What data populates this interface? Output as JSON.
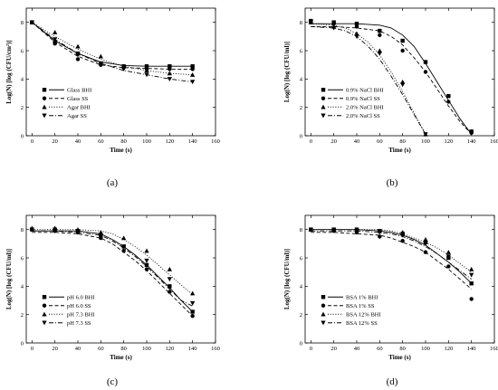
{
  "chart_data": [
    {
      "type": "scatter",
      "panel_label": "(a)",
      "xlabel": "Time (s)",
      "ylabel": "Log(N) [log (CFU/cm²)]",
      "xlim": [
        -5,
        160
      ],
      "ylim": [
        0,
        9
      ],
      "xticks": [
        0,
        20,
        40,
        60,
        80,
        100,
        120,
        140,
        160
      ],
      "yticks": [
        0,
        2,
        4,
        6,
        8
      ],
      "legend_position": "lower-left",
      "series": [
        {
          "name": "Glass  BHI",
          "marker": "square",
          "line": "solid",
          "x": [
            0,
            20,
            40,
            60,
            80,
            100,
            120,
            140
          ],
          "y": [
            8.0,
            6.6,
            5.8,
            5.1,
            4.9,
            4.9,
            4.9,
            4.9
          ],
          "fit_x": [
            0,
            20,
            40,
            60,
            80,
            100,
            120,
            140
          ],
          "fit_y": [
            8.0,
            6.7,
            5.8,
            5.2,
            4.95,
            4.9,
            4.9,
            4.9
          ]
        },
        {
          "name": "Glass  SS",
          "marker": "circle",
          "line": "dashed",
          "x": [
            0,
            20,
            40,
            60,
            80,
            100,
            120,
            140
          ],
          "y": [
            8.0,
            6.5,
            5.4,
            5.0,
            4.8,
            4.7,
            4.7,
            4.7
          ],
          "fit_x": [
            0,
            20,
            40,
            60,
            80,
            100,
            120,
            140
          ],
          "fit_y": [
            8.0,
            6.6,
            5.6,
            5.0,
            4.8,
            4.75,
            4.7,
            4.7
          ]
        },
        {
          "name": "Agar  BHI",
          "marker": "triangle-up",
          "line": "dotted",
          "x": [
            0,
            20,
            40,
            60,
            80,
            100,
            120,
            140
          ],
          "y": [
            8.0,
            7.3,
            6.3,
            5.6,
            4.9,
            4.6,
            4.4,
            4.3
          ],
          "fit_x": [
            0,
            20,
            40,
            60,
            80,
            100,
            120,
            140
          ],
          "fit_y": [
            8.0,
            7.0,
            6.1,
            5.4,
            4.9,
            4.6,
            4.4,
            4.3
          ]
        },
        {
          "name": "Agar  SS",
          "marker": "triangle-down",
          "line": "dashdot",
          "x": [
            0,
            20,
            40,
            60,
            80,
            100,
            120,
            140
          ],
          "y": [
            8.0,
            6.8,
            5.7,
            5.1,
            4.7,
            4.3,
            4.0,
            3.8
          ],
          "fit_x": [
            0,
            20,
            40,
            60,
            80,
            100,
            120,
            140
          ],
          "fit_y": [
            8.0,
            6.8,
            5.8,
            5.1,
            4.6,
            4.3,
            4.0,
            3.8
          ]
        }
      ]
    },
    {
      "type": "scatter",
      "panel_label": "(b)",
      "xlabel": "Time (s)",
      "ylabel": "Log(N) [log (CFU/ml)]",
      "xlim": [
        -5,
        160
      ],
      "ylim": [
        0,
        9
      ],
      "xticks": [
        0,
        20,
        40,
        60,
        80,
        100,
        120,
        140,
        160
      ],
      "yticks": [
        0,
        2,
        4,
        6,
        8
      ],
      "legend_position": "lower-left",
      "series": [
        {
          "name": "0.9% NaCl BHI",
          "marker": "square",
          "line": "solid",
          "x": [
            0,
            20,
            40,
            60,
            80,
            100,
            120,
            140
          ],
          "y": [
            8.1,
            8.0,
            7.9,
            7.4,
            6.7,
            5.2,
            2.8,
            0.3
          ],
          "fit_x": [
            0,
            20,
            40,
            60,
            70,
            80,
            90,
            100,
            110,
            120,
            130,
            140
          ],
          "fit_y": [
            7.9,
            7.9,
            7.9,
            7.8,
            7.6,
            7.1,
            6.3,
            5.1,
            3.8,
            2.5,
            1.2,
            0.1
          ]
        },
        {
          "name": "0.9% NaCl SS",
          "marker": "circle",
          "line": "dashed",
          "x": [
            0,
            20,
            40,
            60,
            80,
            100,
            120,
            140
          ],
          "y": [
            8.0,
            7.9,
            7.7,
            7.1,
            6.0,
            4.5,
            2.4,
            0.2
          ],
          "fit_x": [
            0,
            20,
            40,
            60,
            70,
            80,
            90,
            100,
            110,
            120,
            130,
            140
          ],
          "fit_y": [
            7.7,
            7.7,
            7.6,
            7.4,
            7.0,
            6.4,
            5.5,
            4.5,
            3.3,
            2.1,
            1.0,
            0.1
          ]
        },
        {
          "name": "2.0% NaCl BHI",
          "marker": "triangle-up",
          "line": "dotted",
          "x": [
            0,
            20,
            40,
            60,
            80,
            100
          ],
          "y": [
            8.0,
            7.7,
            7.2,
            6.0,
            3.8,
            0.1
          ],
          "fit_x": [
            0,
            20,
            30,
            40,
            50,
            60,
            70,
            80,
            90,
            100
          ],
          "fit_y": [
            7.9,
            7.8,
            7.6,
            7.2,
            6.6,
            5.7,
            4.5,
            3.1,
            1.6,
            0.1
          ]
        },
        {
          "name": "2.0% NaCl SS",
          "marker": "triangle-down",
          "line": "dashdot",
          "x": [
            0,
            20,
            40,
            60,
            80,
            100
          ],
          "y": [
            8.0,
            7.6,
            7.0,
            5.8,
            3.6,
            0.1
          ],
          "fit_x": [
            0,
            20,
            30,
            40,
            50,
            60,
            70,
            80,
            90,
            100
          ],
          "fit_y": [
            7.7,
            7.6,
            7.4,
            7.0,
            6.3,
            5.4,
            4.2,
            2.9,
            1.5,
            0.1
          ]
        }
      ]
    },
    {
      "type": "scatter",
      "panel_label": "(c)",
      "xlabel": "Time (s)",
      "ylabel": "Log(N) [log (CFU/ml)]",
      "xlim": [
        -5,
        160
      ],
      "ylim": [
        0,
        9
      ],
      "xticks": [
        0,
        20,
        40,
        60,
        80,
        100,
        120,
        140,
        160
      ],
      "yticks": [
        0,
        2,
        4,
        6,
        8
      ],
      "legend_position": "lower-left",
      "series": [
        {
          "name": "pH 6.0 BHI",
          "marker": "square",
          "line": "solid",
          "x": [
            0,
            20,
            40,
            60,
            80,
            100,
            120,
            140
          ],
          "y": [
            8.0,
            8.0,
            7.9,
            7.6,
            6.8,
            5.5,
            4.0,
            2.2
          ],
          "fit_x": [
            0,
            20,
            40,
            60,
            70,
            80,
            90,
            100,
            110,
            120,
            130,
            140
          ],
          "fit_y": [
            7.9,
            7.9,
            7.9,
            7.7,
            7.3,
            6.8,
            6.2,
            5.5,
            4.7,
            3.9,
            3.0,
            2.2
          ]
        },
        {
          "name": "pH 6.0 SS",
          "marker": "circle",
          "line": "dashed",
          "x": [
            0,
            20,
            40,
            60,
            80,
            100,
            120,
            140
          ],
          "y": [
            8.0,
            7.9,
            7.8,
            7.4,
            6.5,
            5.2,
            3.6,
            1.9
          ],
          "fit_x": [
            0,
            20,
            40,
            60,
            70,
            80,
            90,
            100,
            110,
            120,
            130,
            140
          ],
          "fit_y": [
            7.8,
            7.8,
            7.7,
            7.4,
            7.0,
            6.4,
            5.8,
            5.1,
            4.3,
            3.5,
            2.7,
            1.9
          ]
        },
        {
          "name": "pH 7.3 BHI",
          "marker": "triangle-up",
          "line": "dotted",
          "x": [
            0,
            20,
            40,
            60,
            80,
            100,
            120,
            140
          ],
          "y": [
            8.1,
            8.1,
            8.0,
            7.8,
            7.4,
            6.5,
            5.2,
            3.5
          ],
          "fit_x": [
            0,
            20,
            40,
            60,
            70,
            80,
            90,
            100,
            110,
            120,
            130,
            140
          ],
          "fit_y": [
            8.0,
            8.0,
            8.0,
            7.9,
            7.7,
            7.3,
            6.8,
            6.2,
            5.5,
            4.8,
            4.1,
            3.4
          ]
        },
        {
          "name": "pH 7.3 SS",
          "marker": "triangle-down",
          "line": "dashdot",
          "x": [
            0,
            20,
            40,
            60,
            80,
            100,
            120,
            140
          ],
          "y": [
            8.0,
            7.9,
            7.8,
            7.5,
            6.8,
            5.8,
            4.5,
            2.8
          ],
          "fit_x": [
            0,
            20,
            40,
            60,
            70,
            80,
            90,
            100,
            110,
            120,
            130,
            140
          ],
          "fit_y": [
            7.9,
            7.9,
            7.8,
            7.6,
            7.2,
            6.7,
            6.1,
            5.4,
            4.6,
            3.8,
            3.0,
            2.6
          ]
        }
      ]
    },
    {
      "type": "scatter",
      "panel_label": "(d)",
      "xlabel": "Time (s)",
      "ylabel": "Log(N) [log (CFU/ml)]",
      "xlim": [
        -5,
        160
      ],
      "ylim": [
        0,
        9
      ],
      "xticks": [
        0,
        20,
        40,
        60,
        80,
        100,
        120,
        140,
        160
      ],
      "yticks": [
        0,
        2,
        4,
        6,
        8
      ],
      "legend_position": "lower-left",
      "series": [
        {
          "name": "BSA 1% BHI",
          "marker": "square",
          "line": "solid",
          "x": [
            0,
            20,
            40,
            60,
            80,
            100,
            120,
            140
          ],
          "y": [
            8.0,
            8.0,
            8.0,
            7.9,
            7.7,
            7.1,
            6.0,
            4.2
          ],
          "fit_x": [
            0,
            20,
            40,
            60,
            70,
            80,
            90,
            100,
            110,
            120,
            130,
            140
          ],
          "fit_y": [
            8.0,
            8.0,
            8.0,
            7.9,
            7.8,
            7.6,
            7.3,
            6.9,
            6.3,
            5.7,
            5.0,
            4.2
          ]
        },
        {
          "name": "BSA 1% SS",
          "marker": "circle",
          "line": "dashed",
          "x": [
            0,
            20,
            40,
            60,
            80,
            100,
            120,
            140
          ],
          "y": [
            8.0,
            7.9,
            7.8,
            7.5,
            7.2,
            6.4,
            5.4,
            3.1
          ],
          "fit_x": [
            0,
            20,
            40,
            60,
            70,
            80,
            90,
            100,
            110,
            120,
            130,
            140
          ],
          "fit_y": [
            7.8,
            7.8,
            7.7,
            7.6,
            7.4,
            7.1,
            6.8,
            6.4,
            5.8,
            5.2,
            4.5,
            3.8
          ]
        },
        {
          "name": "BSA 12% BHI",
          "marker": "triangle-up",
          "line": "dotted",
          "x": [
            0,
            20,
            40,
            60,
            80,
            100,
            120,
            140
          ],
          "y": [
            8.0,
            8.0,
            8.0,
            7.9,
            7.8,
            7.3,
            6.4,
            5.2
          ],
          "fit_x": [
            0,
            20,
            40,
            60,
            70,
            80,
            90,
            100,
            110,
            120,
            130,
            140
          ],
          "fit_y": [
            8.0,
            8.0,
            8.0,
            8.0,
            7.9,
            7.7,
            7.4,
            7.1,
            6.7,
            6.2,
            5.6,
            5.0
          ]
        },
        {
          "name": "BSA 12%  SS",
          "marker": "triangle-down",
          "line": "dashdot",
          "x": [
            0,
            20,
            40,
            60,
            80,
            100,
            120,
            140
          ],
          "y": [
            8.0,
            8.0,
            7.9,
            7.8,
            7.6,
            7.0,
            6.1,
            4.8
          ],
          "fit_x": [
            0,
            20,
            40,
            60,
            70,
            80,
            90,
            100,
            110,
            120,
            130,
            140
          ],
          "fit_y": [
            7.9,
            7.9,
            7.9,
            7.8,
            7.7,
            7.5,
            7.2,
            6.8,
            6.3,
            5.7,
            5.1,
            4.5
          ]
        }
      ]
    }
  ]
}
